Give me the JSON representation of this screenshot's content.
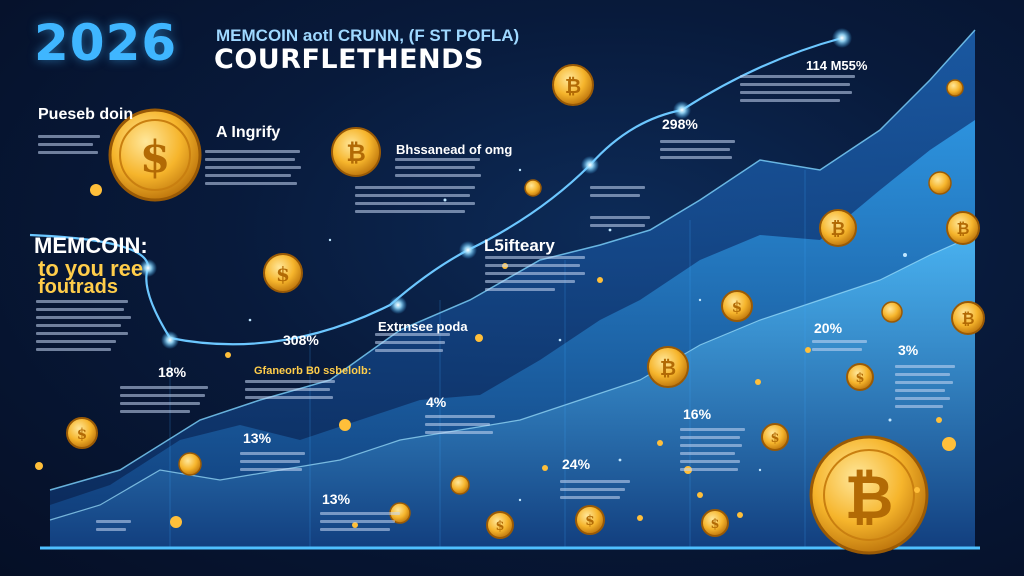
{
  "colors": {
    "background": "#081a3b",
    "accent": "#3fb6ff",
    "gold": "#ffcd4a",
    "text": "#ffffff"
  },
  "header": {
    "year": "2026",
    "subtitle": "MEMCOIN aotl CRUNN, (F ST POFLA)",
    "title": "COURFLETHENDS"
  },
  "labels": {
    "left_top": "Pueseb doin",
    "center_small": "A Ingrify",
    "memcoin_title": "MEMCOIN:",
    "memcoin_line1": "to you ree",
    "memcoin_line2": "foutrads",
    "mid_title": "Bhssanead of omg",
    "strategy": "L5ifteary",
    "bottom_mid": "Extrnsee poda",
    "bottom_left": "Gfaneorb B0 ssbelolb:",
    "top_right_pct": "114 M55%"
  },
  "percentages": {
    "p_298": "298%",
    "p_308": "308%",
    "p_18": "18%",
    "p_13a": "13%",
    "p_13b": "13%",
    "p_4": "4%",
    "p_24": "24%",
    "p_16": "16%",
    "p_20": "20%",
    "p_3": "3%"
  }
}
